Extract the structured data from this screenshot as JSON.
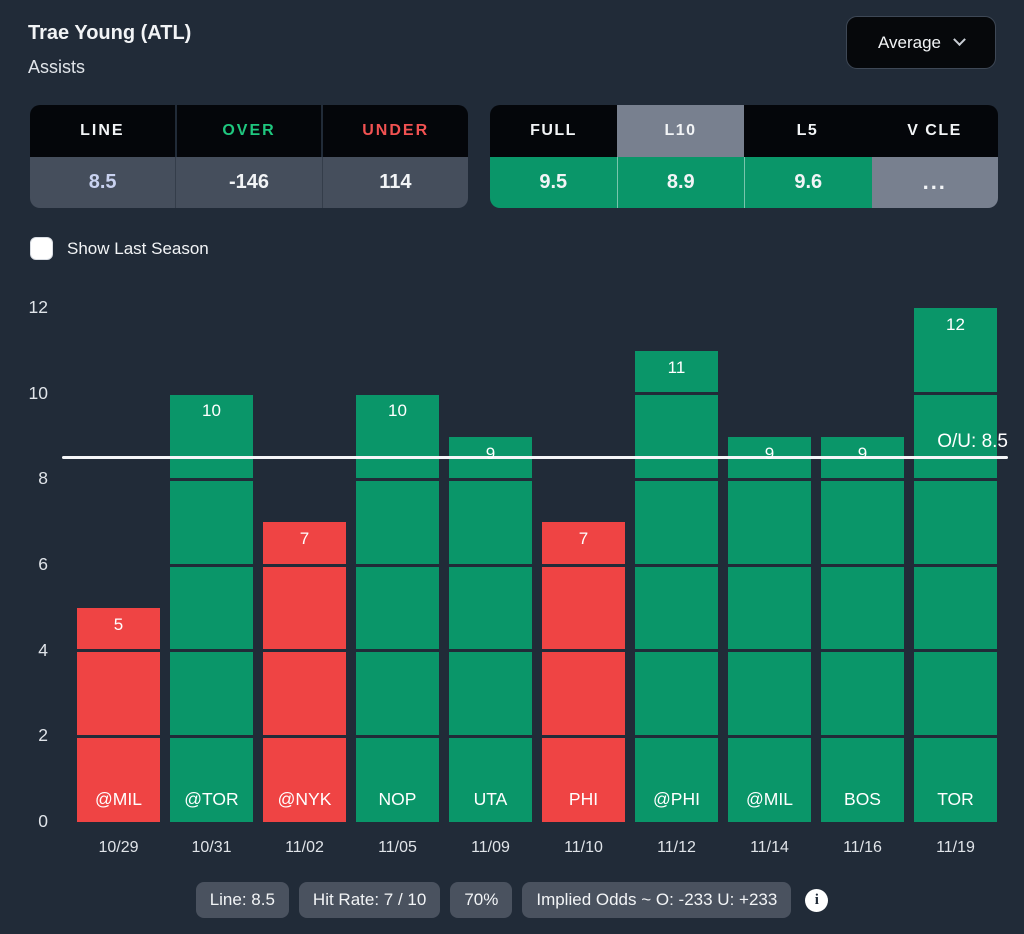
{
  "header": {
    "player": "Trae Young (ATL)",
    "stat": "Assists",
    "view_dropdown": {
      "value": "Average",
      "icon": "chevron-down-icon"
    }
  },
  "odds_table": {
    "headers": [
      "LINE",
      "OVER",
      "UNDER"
    ],
    "values": [
      "8.5",
      "-146",
      "114"
    ]
  },
  "splits_table": {
    "tabs": [
      "FULL",
      "L10",
      "L5",
      "V CLE"
    ],
    "selected_tab": "L10",
    "values": [
      "9.5",
      "8.9",
      "9.6",
      "..."
    ]
  },
  "controls": {
    "show_last_season_label": "Show Last Season",
    "checked": false
  },
  "chart_data": {
    "type": "bar",
    "ylabel": "Assists",
    "ylim": [
      0,
      12
    ],
    "yticks": [
      0,
      2,
      4,
      6,
      8,
      10,
      12
    ],
    "grid": "segment-lines-over-bars",
    "line": 8.5,
    "line_label": "O/U: 8.5",
    "over_color": "#0A9669",
    "under_color": "#EF4444",
    "line_color": "#FFFFFF",
    "games": [
      {
        "date": "10/29",
        "opponent": "@MIL",
        "value": 5,
        "result": "under"
      },
      {
        "date": "10/31",
        "opponent": "@TOR",
        "value": 10,
        "result": "over"
      },
      {
        "date": "11/02",
        "opponent": "@NYK",
        "value": 7,
        "result": "under"
      },
      {
        "date": "11/05",
        "opponent": "NOP",
        "value": 10,
        "result": "over"
      },
      {
        "date": "11/09",
        "opponent": "UTA",
        "value": 9,
        "result": "over"
      },
      {
        "date": "11/10",
        "opponent": "PHI",
        "value": 7,
        "result": "under"
      },
      {
        "date": "11/12",
        "opponent": "@PHI",
        "value": 11,
        "result": "over"
      },
      {
        "date": "11/14",
        "opponent": "@MIL",
        "value": 9,
        "result": "over"
      },
      {
        "date": "11/16",
        "opponent": "BOS",
        "value": 9,
        "result": "over"
      },
      {
        "date": "11/19",
        "opponent": "TOR",
        "value": 12,
        "result": "over"
      }
    ]
  },
  "footer": {
    "badges": [
      "Line: 8.5",
      "Hit Rate: 7 / 10",
      "70%",
      "Implied Odds ~ O: -233 U: +233"
    ],
    "info_icon": "i"
  }
}
